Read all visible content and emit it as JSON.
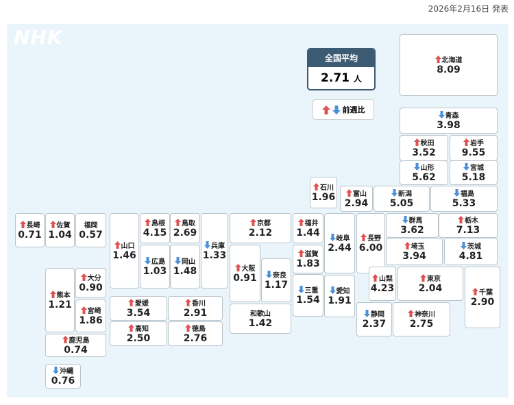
{
  "header": {
    "date": "2026年2月16日 発表",
    "logo": "NHK"
  },
  "national": {
    "title": "全国平均",
    "value": "2.71",
    "unit": "人"
  },
  "legend": {
    "label": "前週比"
  },
  "prefectures": [
    {
      "name": "北海道",
      "value": "8.09",
      "trend": "up"
    },
    {
      "name": "青森",
      "value": "3.98",
      "trend": "down"
    },
    {
      "name": "秋田",
      "value": "3.52",
      "trend": "up"
    },
    {
      "name": "岩手",
      "value": "9.55",
      "trend": "up"
    },
    {
      "name": "山形",
      "value": "5.62",
      "trend": "down"
    },
    {
      "name": "宮城",
      "value": "5.18",
      "trend": "down"
    },
    {
      "name": "石川",
      "value": "1.96",
      "trend": "up"
    },
    {
      "name": "富山",
      "value": "2.94",
      "trend": "up"
    },
    {
      "name": "新潟",
      "value": "5.05",
      "trend": "down"
    },
    {
      "name": "福島",
      "value": "5.33",
      "trend": "down"
    },
    {
      "name": "長崎",
      "value": "0.71",
      "trend": "up"
    },
    {
      "name": "佐賀",
      "value": "1.04",
      "trend": "up"
    },
    {
      "name": "福岡",
      "value": "0.57"
    },
    {
      "name": "山口",
      "value": "1.46",
      "trend": "up"
    },
    {
      "name": "島根",
      "value": "4.15",
      "trend": "up"
    },
    {
      "name": "鳥取",
      "value": "2.69",
      "trend": "up"
    },
    {
      "name": "広島",
      "value": "1.03",
      "trend": "down"
    },
    {
      "name": "岡山",
      "value": "1.48",
      "trend": "down"
    },
    {
      "name": "兵庫",
      "value": "1.33",
      "trend": "down"
    },
    {
      "name": "京都",
      "value": "2.12",
      "trend": "up"
    },
    {
      "name": "大阪",
      "value": "0.91",
      "trend": "up"
    },
    {
      "name": "奈良",
      "value": "1.17",
      "trend": "down"
    },
    {
      "name": "和歌山",
      "value": "1.42"
    },
    {
      "name": "福井",
      "value": "1.44",
      "trend": "up"
    },
    {
      "name": "滋賀",
      "value": "1.83",
      "trend": "up"
    },
    {
      "name": "三重",
      "value": "1.54",
      "trend": "down"
    },
    {
      "name": "岐阜",
      "value": "2.44",
      "trend": "down"
    },
    {
      "name": "愛知",
      "value": "1.91",
      "trend": "down"
    },
    {
      "name": "長野",
      "value": "6.00",
      "trend": "up"
    },
    {
      "name": "群馬",
      "value": "3.62",
      "trend": "down"
    },
    {
      "name": "栃木",
      "value": "7.13",
      "trend": "up"
    },
    {
      "name": "埼玉",
      "value": "3.94",
      "trend": "up"
    },
    {
      "name": "茨城",
      "value": "4.81",
      "trend": "down"
    },
    {
      "name": "山梨",
      "value": "4.23",
      "trend": "up"
    },
    {
      "name": "東京",
      "value": "2.04",
      "trend": "up"
    },
    {
      "name": "千葉",
      "value": "2.90",
      "trend": "up"
    },
    {
      "name": "静岡",
      "value": "2.37",
      "trend": "down"
    },
    {
      "name": "神奈川",
      "value": "2.75",
      "trend": "up"
    },
    {
      "name": "熊本",
      "value": "1.21",
      "trend": "up"
    },
    {
      "name": "大分",
      "value": "0.90",
      "trend": "up"
    },
    {
      "name": "宮崎",
      "value": "1.86",
      "trend": "up"
    },
    {
      "name": "愛媛",
      "value": "3.54",
      "trend": "up"
    },
    {
      "name": "香川",
      "value": "2.91",
      "trend": "up"
    },
    {
      "name": "高知",
      "value": "2.50",
      "trend": "up"
    },
    {
      "name": "徳島",
      "value": "2.76",
      "trend": "up"
    },
    {
      "name": "鹿児島",
      "value": "0.74",
      "trend": "up"
    },
    {
      "name": "沖縄",
      "value": "0.76",
      "trend": "down"
    }
  ]
}
